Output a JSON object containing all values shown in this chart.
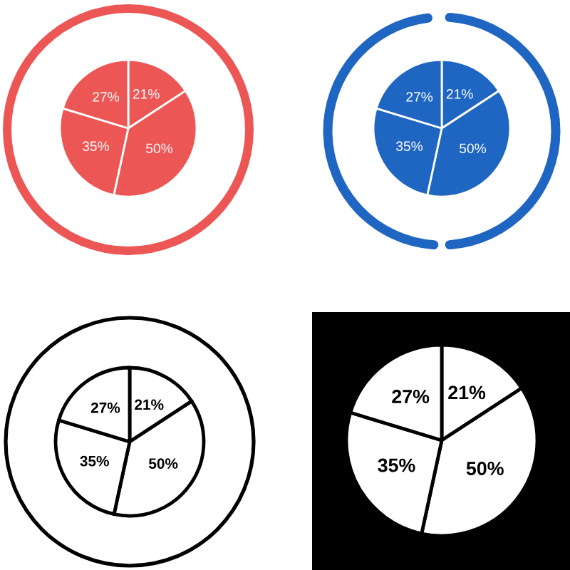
{
  "chart_data": [
    {
      "type": "pie",
      "categories": [
        null,
        null,
        null,
        null
      ],
      "values": [
        21,
        50,
        35,
        27
      ],
      "colors": [
        "#ec5654",
        "#ec5654",
        "#ec5654",
        "#ec5654"
      ],
      "value_labels": [
        "21%",
        "50%",
        "35%",
        "27%"
      ]
    },
    {
      "type": "pie",
      "categories": [
        null,
        null,
        null,
        null
      ],
      "values": [
        21,
        50,
        35,
        27
      ],
      "colors": [
        "#1f66c2",
        "#1f66c2",
        "#1f66c2",
        "#1f66c2"
      ],
      "value_labels": [
        "21%",
        "50%",
        "35%",
        "27%"
      ]
    },
    {
      "type": "pie",
      "categories": [
        null,
        null,
        null,
        null
      ],
      "values": [
        21,
        50,
        35,
        27
      ],
      "colors": [
        "#ffffff",
        "#ffffff",
        "#ffffff",
        "#ffffff"
      ],
      "value_labels": [
        "21%",
        "50%",
        "35%",
        "27%"
      ]
    },
    {
      "type": "pie",
      "categories": [
        null,
        null,
        null,
        null
      ],
      "values": [
        21,
        50,
        35,
        27
      ],
      "colors": [
        "#ffffff",
        "#ffffff",
        "#ffffff",
        "#ffffff"
      ],
      "value_labels": [
        "21%",
        "50%",
        "35%",
        "27%"
      ]
    }
  ]
}
